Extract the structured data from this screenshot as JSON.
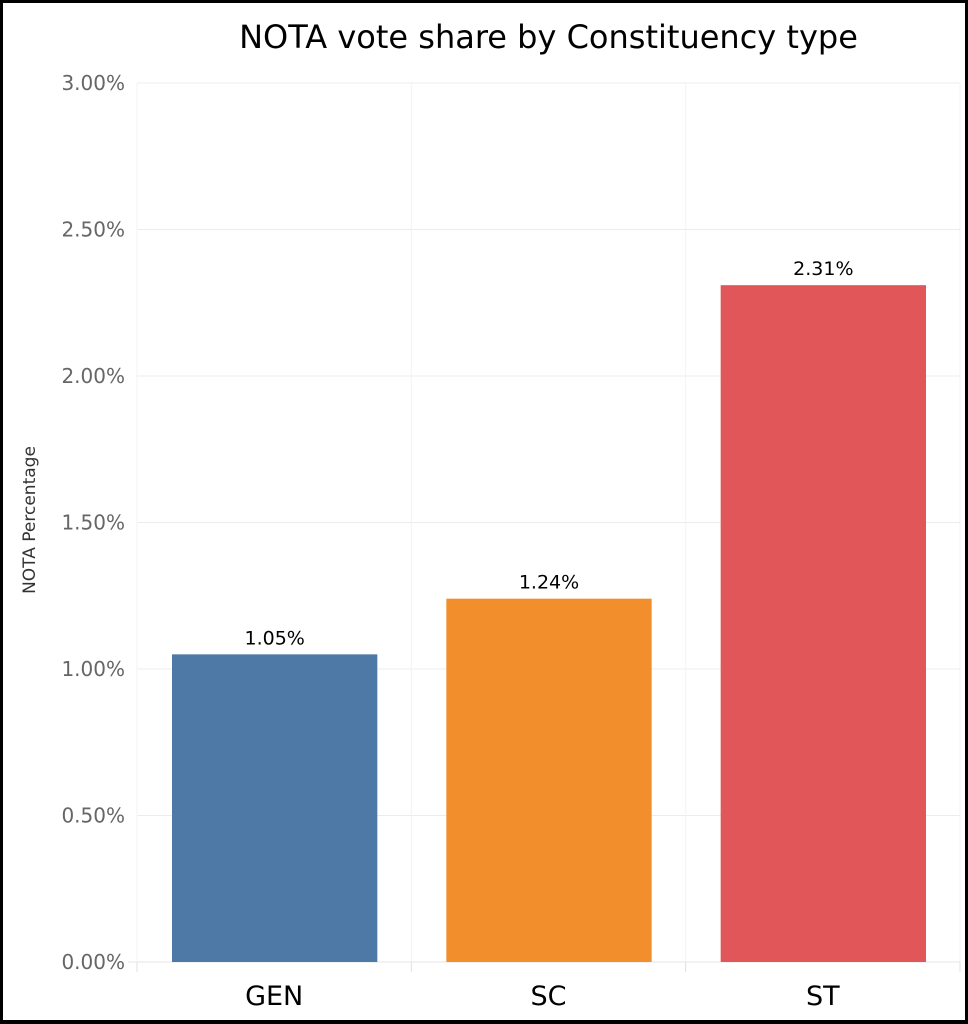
{
  "chart_data": {
    "type": "bar",
    "title": "NOTA vote share by Constituency type",
    "xlabel": "",
    "ylabel": "NOTA Percentage",
    "categories": [
      "GEN",
      "SC",
      "ST"
    ],
    "values": [
      1.05,
      1.24,
      2.31
    ],
    "data_labels": [
      "1.05%",
      "1.24%",
      "2.31%"
    ],
    "colors": [
      "#4e79a7",
      "#f28e2b",
      "#e15759"
    ],
    "ylim": [
      0,
      3
    ],
    "yticks": [
      0,
      0.5,
      1,
      1.5,
      2,
      2.5,
      3
    ],
    "ytick_labels": [
      "0.00%",
      "0.50%",
      "1.00%",
      "1.50%",
      "2.00%",
      "2.50%",
      "3.00%"
    ],
    "grid": true,
    "legend": "none"
  }
}
